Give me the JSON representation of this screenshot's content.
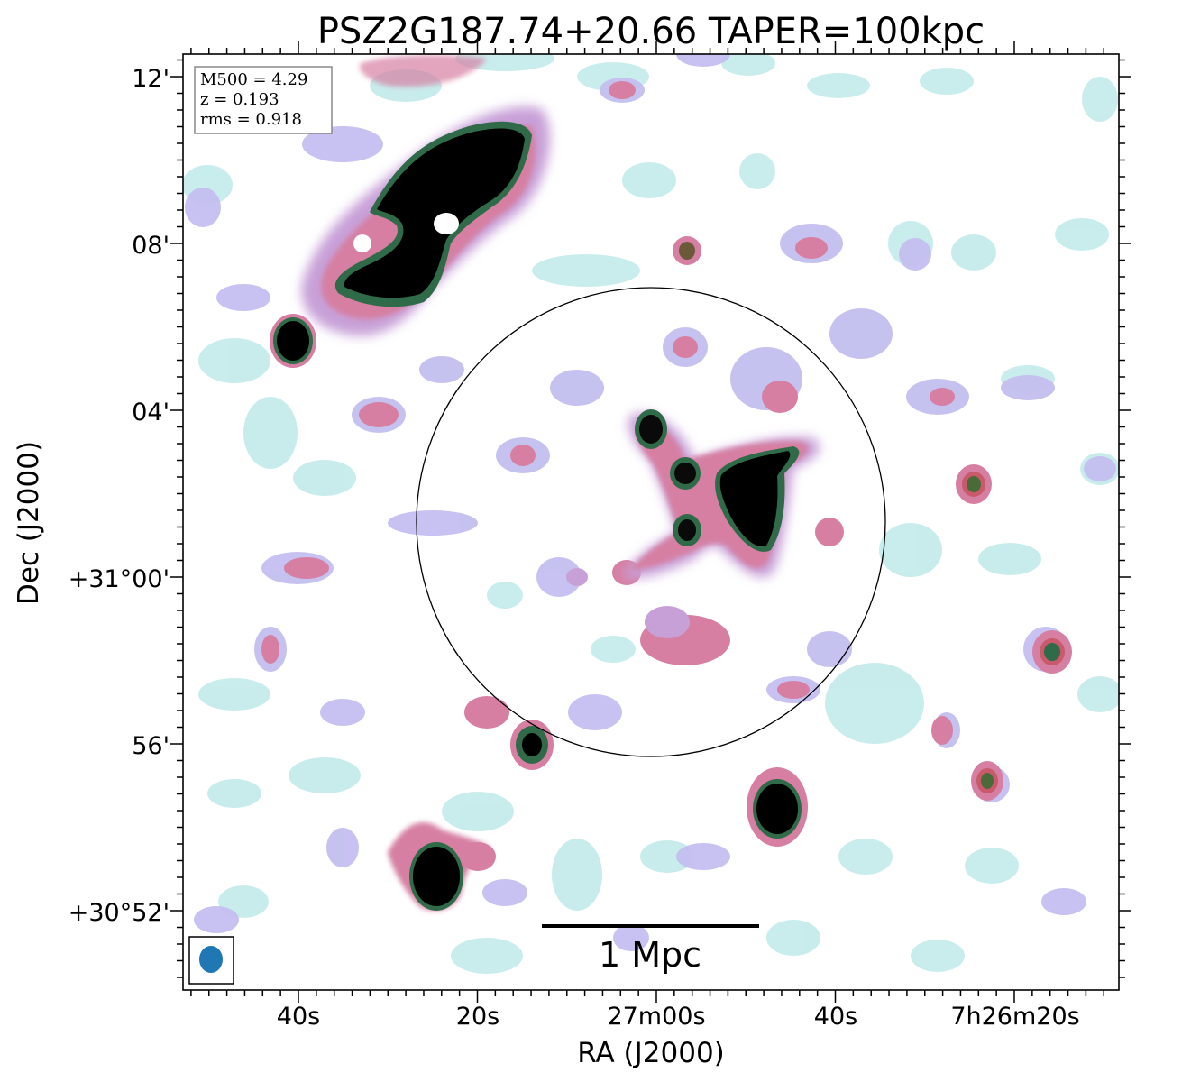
{
  "figure": {
    "title": "PSZ2G187.74+20.66 TAPER=100kpc",
    "xlabel": "RA (J2000)",
    "ylabel": "Dec (J2000)"
  },
  "info_box": {
    "line1": "M500 = 4.29",
    "line2": "z = 0.193",
    "line3": "rms = 0.918"
  },
  "scalebar": {
    "label": "1 Mpc"
  },
  "beam": {
    "color": "#1f77b4"
  },
  "xticks": [
    "40s",
    "20s",
    "27m00s",
    "40s",
    "7h26m20s"
  ],
  "yticks": [
    "12'",
    "08'",
    "04'",
    "+31°00'",
    "56'",
    "+30°52'"
  ],
  "colormap": {
    "faint": "#c6ecec",
    "light": "#c4bff0",
    "mid": "#c8a0d8",
    "pink": "#d67fa2",
    "red": "#c85a6c",
    "green": "#2f6b48",
    "core": "#000000"
  }
}
